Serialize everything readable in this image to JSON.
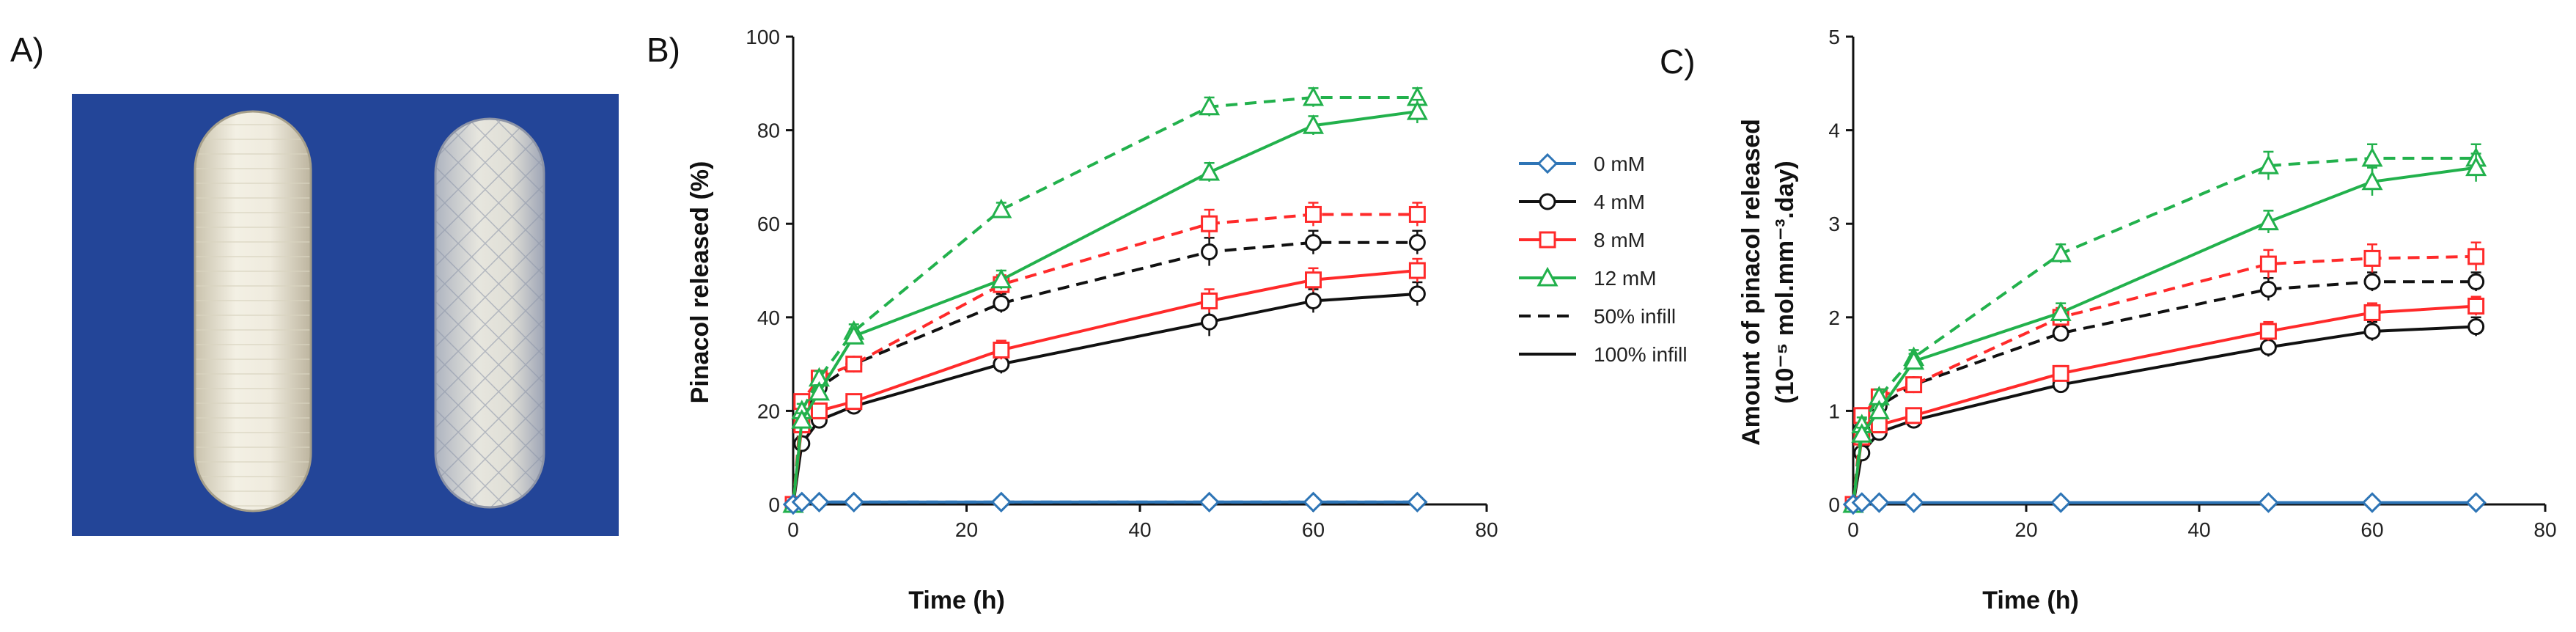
{
  "panels": {
    "a_label": "A)",
    "b_label": "B)",
    "c_label": "C)"
  },
  "legend": {
    "entries": [
      {
        "key": "0",
        "label": "0 mM",
        "color": "#2e75b6",
        "marker": "diamond",
        "dash": "solid"
      },
      {
        "key": "4",
        "label": "4 mM",
        "color": "#111111",
        "marker": "circle",
        "dash": "solid"
      },
      {
        "key": "8",
        "label": "8 mM",
        "color": "#ff2a2a",
        "marker": "square",
        "dash": "solid"
      },
      {
        "key": "12",
        "label": "12 mM",
        "color": "#22b14c",
        "marker": "triangle",
        "dash": "solid"
      },
      {
        "key": "infill50",
        "label": "50% infill",
        "color": "#111111",
        "marker": "none",
        "dash": "dashed"
      },
      {
        "key": "infill100",
        "label": "100% infill",
        "color": "#111111",
        "marker": "none",
        "dash": "solid"
      }
    ]
  },
  "photo": {
    "description_icon": "photo-of-two-capsule-implants",
    "background_color": "#1f3f8f"
  },
  "chart_data": [
    {
      "panel": "B",
      "type": "line",
      "xlabel": "Time (h)",
      "ylabel": "Pinacol released (%)",
      "xlim": [
        0,
        80
      ],
      "ylim": [
        0,
        100
      ],
      "xticks": [
        0,
        20,
        40,
        60,
        80
      ],
      "yticks": [
        0,
        20,
        40,
        60,
        80,
        100
      ],
      "grid": false,
      "series": [
        {
          "concentration": "0",
          "infill": "50%",
          "x": [
            0,
            1,
            3,
            7,
            24,
            48,
            60,
            72
          ],
          "y": [
            0,
            0.5,
            0.5,
            0.5,
            0.5,
            0.5,
            0.5,
            0.5
          ],
          "err": [
            0,
            0,
            0,
            0,
            0,
            0,
            0,
            0
          ]
        },
        {
          "concentration": "0",
          "infill": "100%",
          "x": [
            0,
            1,
            3,
            7,
            24,
            48,
            60,
            72
          ],
          "y": [
            0,
            0.5,
            0.5,
            0.5,
            0.5,
            0.5,
            0.5,
            0.5
          ],
          "err": [
            0,
            0,
            0,
            0,
            0,
            0,
            0,
            0
          ]
        },
        {
          "concentration": "4",
          "infill": "50%",
          "x": [
            0,
            1,
            3,
            7,
            24,
            48,
            60,
            72
          ],
          "y": [
            0,
            18,
            25,
            30,
            43,
            54,
            56,
            56
          ],
          "err": [
            0,
            1.5,
            1.5,
            1.5,
            2,
            3,
            2.5,
            2.5
          ]
        },
        {
          "concentration": "4",
          "infill": "100%",
          "x": [
            0,
            1,
            3,
            7,
            24,
            48,
            60,
            72
          ],
          "y": [
            0,
            13,
            18,
            21,
            30,
            39,
            43.5,
            45
          ],
          "err": [
            0,
            1.5,
            1.5,
            1.5,
            2,
            3,
            2.5,
            2.5
          ]
        },
        {
          "concentration": "8",
          "infill": "50%",
          "x": [
            0,
            1,
            3,
            7,
            24,
            48,
            60,
            72
          ],
          "y": [
            0,
            22,
            27,
            30,
            47,
            60,
            62,
            62
          ],
          "err": [
            0,
            1.5,
            1.5,
            1.5,
            2,
            3,
            2.5,
            2.5
          ]
        },
        {
          "concentration": "8",
          "infill": "100%",
          "x": [
            0,
            1,
            3,
            7,
            24,
            48,
            60,
            72
          ],
          "y": [
            0,
            17,
            20,
            22,
            33,
            43.5,
            48,
            50
          ],
          "err": [
            0,
            1.5,
            1.5,
            1.5,
            2,
            2.5,
            2.5,
            2.5
          ]
        },
        {
          "concentration": "12",
          "infill": "50%",
          "x": [
            0,
            1,
            3,
            7,
            24,
            48,
            60,
            72
          ],
          "y": [
            0,
            20,
            27,
            37,
            63,
            85,
            87,
            87
          ],
          "err": [
            0,
            1.5,
            1.5,
            1.5,
            1.5,
            2,
            2,
            2
          ]
        },
        {
          "concentration": "12",
          "infill": "100%",
          "x": [
            0,
            1,
            3,
            7,
            24,
            48,
            60,
            72
          ],
          "y": [
            0,
            18,
            24,
            36,
            48,
            71,
            81,
            84
          ],
          "err": [
            0,
            1.5,
            1.5,
            1.5,
            2,
            2,
            2,
            2.5
          ]
        }
      ]
    },
    {
      "panel": "C",
      "type": "line",
      "xlabel": "Time (h)",
      "ylabel": "Amount of pinacol released",
      "ylabel_line2": "(10⁻⁵ mol.mm⁻³.day)",
      "xlim": [
        0,
        80
      ],
      "ylim": [
        0,
        5
      ],
      "xticks": [
        0,
        20,
        40,
        60,
        80
      ],
      "yticks": [
        0,
        1,
        2,
        3,
        4,
        5
      ],
      "grid": false,
      "series": [
        {
          "concentration": "0",
          "infill": "50%",
          "x": [
            0,
            1,
            3,
            7,
            24,
            48,
            60,
            72
          ],
          "y": [
            0,
            0.02,
            0.02,
            0.02,
            0.02,
            0.02,
            0.02,
            0.02
          ],
          "err": [
            0,
            0,
            0,
            0,
            0,
            0,
            0,
            0
          ]
        },
        {
          "concentration": "0",
          "infill": "100%",
          "x": [
            0,
            1,
            3,
            7,
            24,
            48,
            60,
            72
          ],
          "y": [
            0,
            0.02,
            0.02,
            0.02,
            0.02,
            0.02,
            0.02,
            0.02
          ],
          "err": [
            0,
            0,
            0,
            0,
            0,
            0,
            0,
            0
          ]
        },
        {
          "concentration": "4",
          "infill": "50%",
          "x": [
            0,
            1,
            3,
            7,
            24,
            48,
            60,
            72
          ],
          "y": [
            0,
            0.8,
            1.05,
            1.28,
            1.83,
            2.3,
            2.38,
            2.38
          ],
          "err": [
            0,
            0.07,
            0.07,
            0.07,
            0.08,
            0.12,
            0.1,
            0.1
          ]
        },
        {
          "concentration": "4",
          "infill": "100%",
          "x": [
            0,
            1,
            3,
            7,
            24,
            48,
            60,
            72
          ],
          "y": [
            0,
            0.55,
            0.77,
            0.9,
            1.28,
            1.68,
            1.85,
            1.9
          ],
          "err": [
            0,
            0.06,
            0.06,
            0.06,
            0.08,
            0.1,
            0.1,
            0.1
          ]
        },
        {
          "concentration": "8",
          "infill": "50%",
          "x": [
            0,
            1,
            3,
            7,
            24,
            48,
            60,
            72
          ],
          "y": [
            0,
            0.95,
            1.15,
            1.28,
            2.0,
            2.57,
            2.63,
            2.65
          ],
          "err": [
            0,
            0.08,
            0.08,
            0.08,
            0.1,
            0.15,
            0.15,
            0.15
          ]
        },
        {
          "concentration": "8",
          "infill": "100%",
          "x": [
            0,
            1,
            3,
            7,
            24,
            48,
            60,
            72
          ],
          "y": [
            0,
            0.72,
            0.85,
            0.95,
            1.4,
            1.85,
            2.05,
            2.12
          ],
          "err": [
            0,
            0.07,
            0.07,
            0.07,
            0.08,
            0.1,
            0.1,
            0.1
          ]
        },
        {
          "concentration": "12",
          "infill": "50%",
          "x": [
            0,
            1,
            3,
            7,
            24,
            48,
            60,
            72
          ],
          "y": [
            0,
            0.85,
            1.15,
            1.57,
            2.68,
            3.62,
            3.7,
            3.7
          ],
          "err": [
            0,
            0.08,
            0.08,
            0.08,
            0.1,
            0.15,
            0.15,
            0.15
          ]
        },
        {
          "concentration": "12",
          "infill": "100%",
          "x": [
            0,
            1,
            3,
            7,
            24,
            48,
            60,
            72
          ],
          "y": [
            0,
            0.75,
            1.0,
            1.53,
            2.05,
            3.02,
            3.45,
            3.6
          ],
          "err": [
            0,
            0.07,
            0.07,
            0.08,
            0.1,
            0.12,
            0.15,
            0.15
          ]
        }
      ]
    }
  ]
}
